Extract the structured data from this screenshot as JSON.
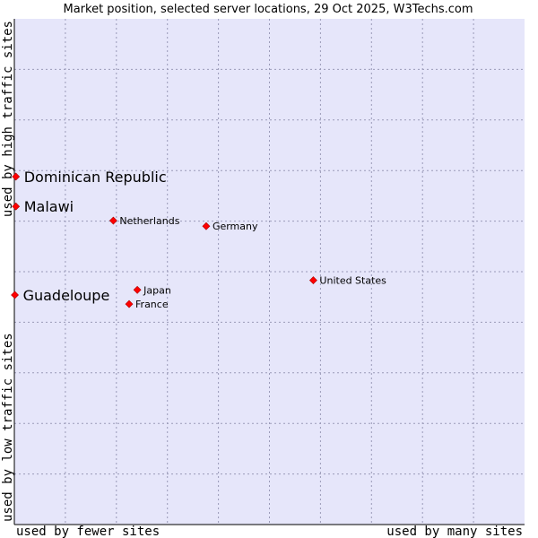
{
  "chart_data": {
    "type": "scatter",
    "title": "Market position, selected server locations, 29 Oct 2025, W3Techs.com",
    "xlabel_left": "used by fewer sites",
    "xlabel_right": "used by many sites",
    "ylabel_bottom": "used by low traffic sites",
    "ylabel_top": "used by high traffic sites",
    "xlim": [
      0,
      100
    ],
    "ylim": [
      0,
      100
    ],
    "grid": true,
    "colors": {
      "plot_bg": "#e6e6fa",
      "point": "#ff0000",
      "axis": "#000000"
    },
    "points": [
      {
        "label": "Dominican Republic",
        "x": 0.3,
        "y": 68.8,
        "size": "large"
      },
      {
        "label": "Malawi",
        "x": 0.3,
        "y": 62.9,
        "size": "large"
      },
      {
        "label": "Guadeloupe",
        "x": 0.1,
        "y": 45.4,
        "size": "large"
      },
      {
        "label": "Netherlands",
        "x": 19.4,
        "y": 60.1,
        "size": "small"
      },
      {
        "label": "Germany",
        "x": 37.6,
        "y": 59.0,
        "size": "small"
      },
      {
        "label": "United States",
        "x": 58.6,
        "y": 48.3,
        "size": "small"
      },
      {
        "label": "Japan",
        "x": 24.1,
        "y": 46.4,
        "size": "small"
      },
      {
        "label": "France",
        "x": 22.5,
        "y": 43.6,
        "size": "small"
      }
    ]
  }
}
